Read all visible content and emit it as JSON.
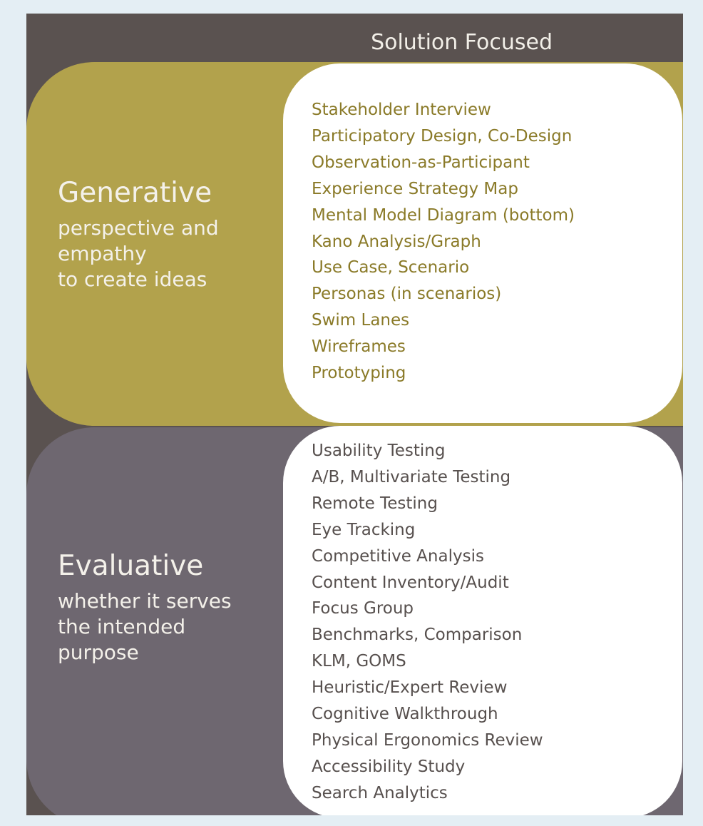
{
  "header": {
    "title": "Solution Focused"
  },
  "generative": {
    "title": "Generative",
    "subtitle_lines": [
      "perspective and",
      "empathy",
      "to create ideas"
    ],
    "methods": [
      "Stakeholder Interview",
      "Participatory Design, Co-Design",
      "Observation-as-Participant",
      "Experience Strategy Map",
      "Mental Model Diagram (bottom)",
      "Kano Analysis/Graph",
      "Use Case, Scenario",
      "Personas (in scenarios)",
      "Swim Lanes",
      "Wireframes",
      "Prototyping"
    ]
  },
  "evaluative": {
    "title": "Evaluative",
    "subtitle_lines": [
      "whether it serves",
      "the intended",
      "purpose"
    ],
    "methods": [
      "Usability Testing",
      "A/B, Multivariate Testing",
      "Remote Testing",
      "Eye Tracking",
      "Competitive Analysis",
      "Content Inventory/Audit",
      "Focus Group",
      "Benchmarks, Comparison",
      "KLM, GOMS",
      "Heuristic/Expert Review",
      "Cognitive Walkthrough",
      "Physical Ergonomics Review",
      "Accessibility Study",
      "Search Analytics"
    ]
  },
  "colors": {
    "background": "#e4eef4",
    "header": "#5a5250",
    "generative_band": "#b2a24c",
    "evaluative_band": "#6e6770",
    "generative_text": "#8a7a28",
    "evaluative_text": "#57504e"
  }
}
